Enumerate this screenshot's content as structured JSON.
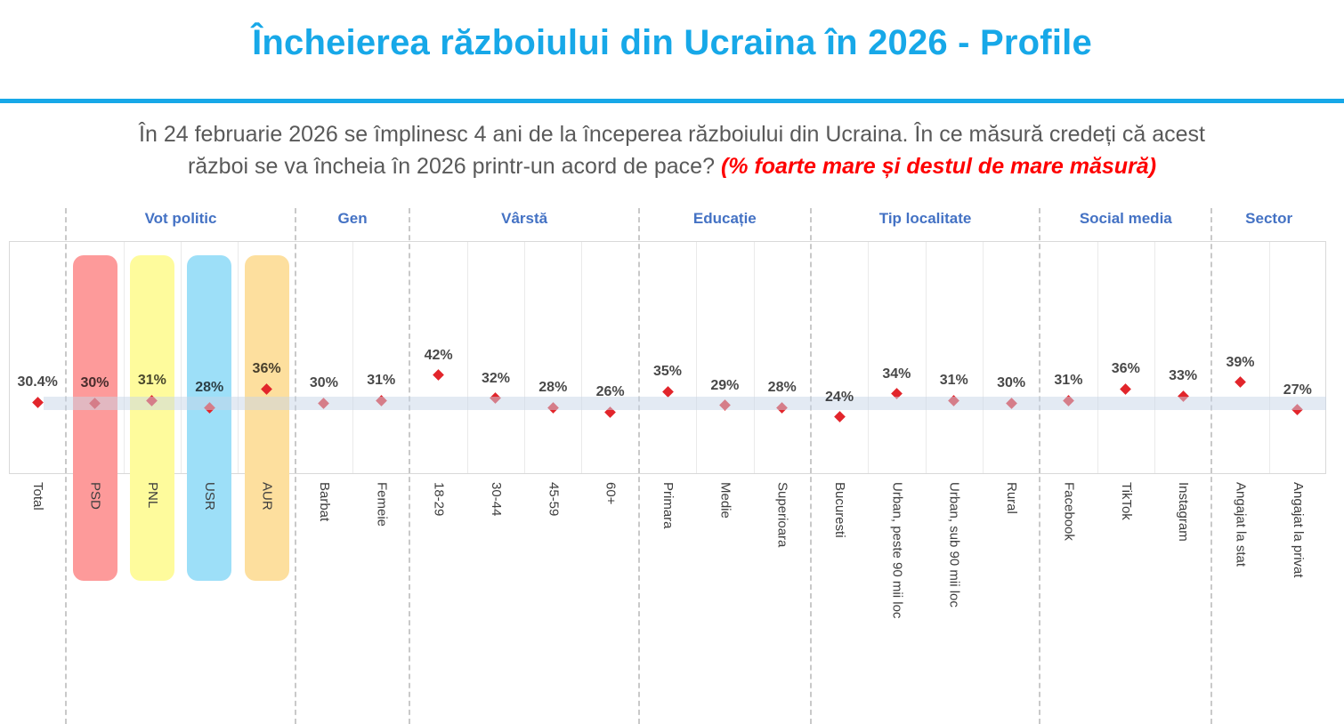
{
  "header": {
    "title": "Încheierea războiului din Ucraina în 2026 - Profile",
    "question_line1": "În 24 februarie 2026 se împlinesc 4 ani de la începerea războiului din Ucraina. În ce măsură credeți că acest",
    "question_line2": "război se va încheia în 2026 printr-un acord de pace?",
    "question_note": "(% foarte mare și destul de mare măsură)"
  },
  "chart_data": {
    "type": "scatter",
    "title": "Încheierea războiului din Ucraina în 2026 - Profile",
    "unit": "%",
    "legend_position": "none",
    "grid": "vertical-light",
    "reference": {
      "label": "Total",
      "value": 30.4
    },
    "colors": {
      "accent_blue": "#17A8E8",
      "section_header_blue": "#4472C4",
      "marker_red": "#E2252B",
      "band_blue": "#C7D5E8",
      "pill_psd": "#FD9A9A",
      "pill_pnl": "#FEFB9C",
      "pill_usr": "#9DDFF8",
      "pill_aur": "#FDDF9E"
    },
    "groups": [
      {
        "name": "",
        "items": [
          {
            "label": "Total",
            "value": 30.4
          }
        ]
      },
      {
        "name": "Vot politic",
        "items": [
          {
            "label": "PSD",
            "value": 30,
            "pill": "#FD9A9A"
          },
          {
            "label": "PNL",
            "value": 31,
            "pill": "#FEFB9C"
          },
          {
            "label": "USR",
            "value": 28,
            "pill": "#9DDFF8"
          },
          {
            "label": "AUR",
            "value": 36,
            "pill": "#FDDF9E"
          }
        ]
      },
      {
        "name": "Gen",
        "items": [
          {
            "label": "Barbat",
            "value": 30
          },
          {
            "label": "Femeie",
            "value": 31
          }
        ]
      },
      {
        "name": "Vârstă",
        "items": [
          {
            "label": "18-29",
            "value": 42
          },
          {
            "label": "30-44",
            "value": 32
          },
          {
            "label": "45-59",
            "value": 28
          },
          {
            "label": "60+",
            "value": 26
          }
        ]
      },
      {
        "name": "Educație",
        "items": [
          {
            "label": "Primara",
            "value": 35
          },
          {
            "label": "Medie",
            "value": 29
          },
          {
            "label": "Superioara",
            "value": 28
          }
        ]
      },
      {
        "name": "Tip localitate",
        "items": [
          {
            "label": "Bucuresti",
            "value": 24
          },
          {
            "label": "Urban, peste 90 mii loc",
            "value": 34
          },
          {
            "label": "Urban, sub 90 mii loc",
            "value": 31
          },
          {
            "label": "Rural",
            "value": 30
          }
        ]
      },
      {
        "name": "Social media",
        "items": [
          {
            "label": "Facebook",
            "value": 31
          },
          {
            "label": "TikTok",
            "value": 36
          },
          {
            "label": "Instagram",
            "value": 33
          }
        ]
      },
      {
        "name": "Sector",
        "items": [
          {
            "label": "Angajat la stat",
            "value": 39
          },
          {
            "label": "Angajat la privat",
            "value": 27
          }
        ]
      }
    ]
  }
}
